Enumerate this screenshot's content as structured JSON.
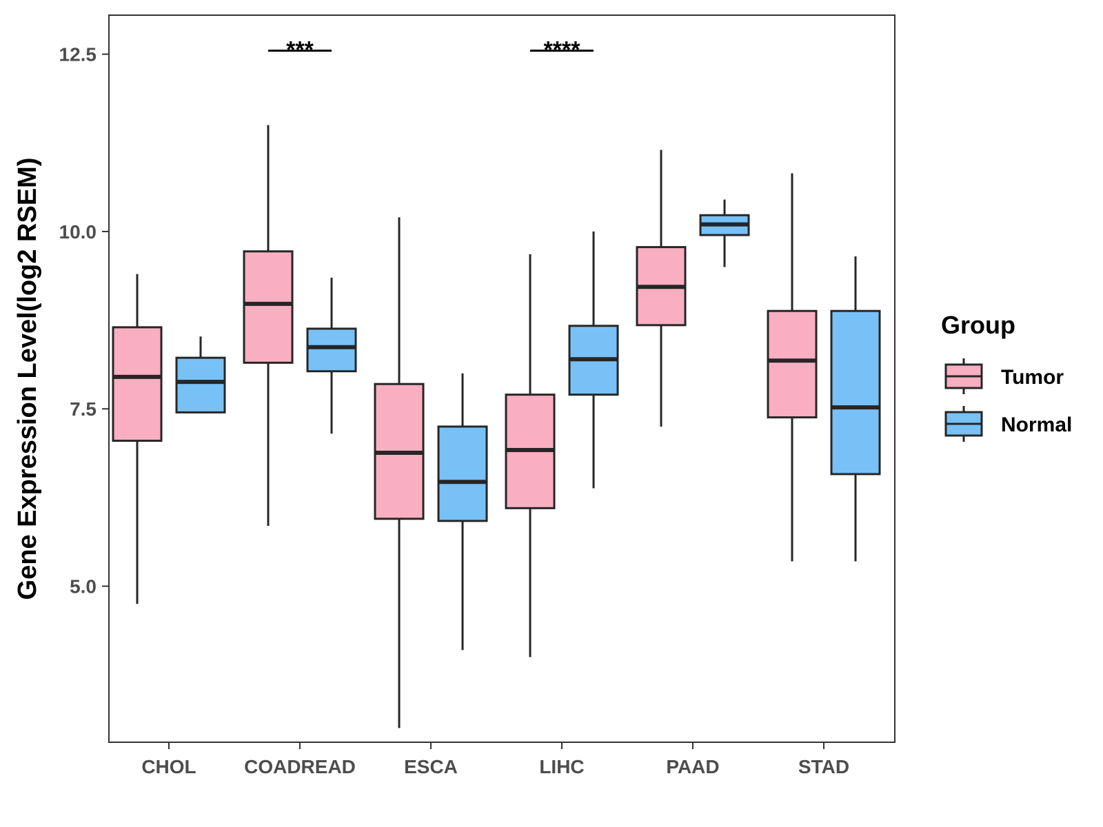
{
  "chart_data": {
    "type": "boxplot",
    "title": "",
    "xlabel": "",
    "ylabel": "Gene Expression Level(log2 RSEM)",
    "ylim": [
      2.8,
      13.05
    ],
    "yticks": [
      5.0,
      7.5,
      10.0,
      12.5
    ],
    "ytick_labels": [
      "5.0",
      "7.5",
      "10.0",
      "12.5"
    ],
    "categories": [
      "CHOL",
      "COADREAD",
      "ESCA",
      "LIHC",
      "PAAD",
      "STAD"
    ],
    "legend": {
      "title": "Group",
      "position": "right",
      "entries": [
        "Tumor",
        "Normal"
      ]
    },
    "colors": {
      "Tumor": "#f9afc1",
      "Normal": "#78c1f7",
      "outline": "#262626"
    },
    "series": [
      {
        "name": "Tumor",
        "boxes": [
          {
            "category": "CHOL",
            "min": 4.75,
            "q1": 7.05,
            "median": 7.95,
            "q3": 8.65,
            "max": 9.4
          },
          {
            "category": "COADREAD",
            "min": 5.85,
            "q1": 8.15,
            "median": 8.98,
            "q3": 9.72,
            "max": 11.5
          },
          {
            "category": "ESCA",
            "min": 3.0,
            "q1": 5.95,
            "median": 6.88,
            "q3": 7.85,
            "max": 10.2
          },
          {
            "category": "LIHC",
            "min": 4.0,
            "q1": 6.1,
            "median": 6.92,
            "q3": 7.7,
            "max": 9.68
          },
          {
            "category": "PAAD",
            "min": 7.25,
            "q1": 8.68,
            "median": 9.22,
            "q3": 9.78,
            "max": 11.15
          },
          {
            "category": "STAD",
            "min": 5.35,
            "q1": 7.38,
            "median": 8.18,
            "q3": 8.88,
            "max": 10.82
          }
        ]
      },
      {
        "name": "Normal",
        "boxes": [
          {
            "category": "CHOL",
            "min": 7.45,
            "q1": 7.45,
            "median": 7.88,
            "q3": 8.22,
            "max": 8.52
          },
          {
            "category": "COADREAD",
            "min": 7.15,
            "q1": 8.03,
            "median": 8.37,
            "q3": 8.63,
            "max": 9.35
          },
          {
            "category": "ESCA",
            "min": 4.1,
            "q1": 5.92,
            "median": 6.47,
            "q3": 7.25,
            "max": 8.0
          },
          {
            "category": "LIHC",
            "min": 6.38,
            "q1": 7.7,
            "median": 8.2,
            "q3": 8.67,
            "max": 10.0
          },
          {
            "category": "PAAD",
            "min": 9.5,
            "q1": 9.95,
            "median": 10.1,
            "q3": 10.23,
            "max": 10.45
          },
          {
            "category": "STAD",
            "min": 5.35,
            "q1": 6.58,
            "median": 7.52,
            "q3": 8.88,
            "max": 9.65
          }
        ]
      }
    ],
    "annotations": [
      {
        "category": "COADREAD",
        "label": "***",
        "y": 12.55
      },
      {
        "category": "LIHC",
        "label": "****",
        "y": 12.55
      }
    ]
  }
}
